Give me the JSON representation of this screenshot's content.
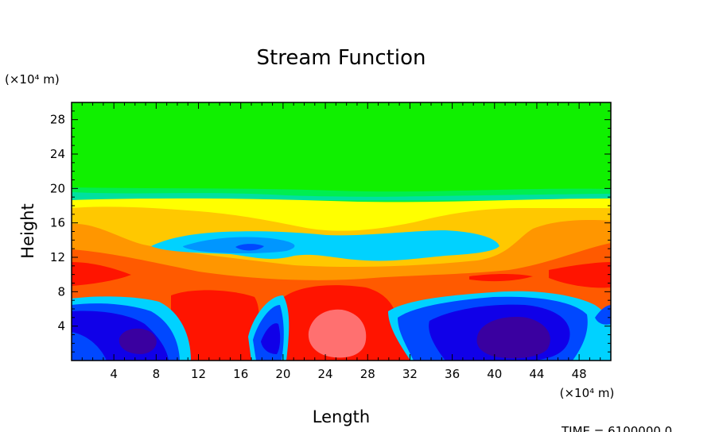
{
  "chart_data": {
    "type": "heatmap",
    "title": "Stream Function",
    "xlabel": "Length",
    "ylabel": "Height",
    "x_unit": "(×10⁴ m)",
    "y_unit": "(×10⁴ m)",
    "xlim": [
      0,
      51
    ],
    "ylim": [
      0,
      30
    ],
    "x_ticks": [
      "4",
      "8",
      "12",
      "16",
      "20",
      "24",
      "28",
      "32",
      "36",
      "40",
      "44",
      "48"
    ],
    "y_ticks": [
      "4",
      "8",
      "12",
      "16",
      "20",
      "24",
      "28"
    ],
    "footer": "TIME = 6100000.0",
    "colors": {
      "palette": [
        "#3a00a0",
        "#1000e8",
        "#0048ff",
        "#0096ff",
        "#00d2ff",
        "#00e0a0",
        "#00ee50",
        "#10f000",
        "#ffff00",
        "#ffc800",
        "#ff9600",
        "#ff5a00",
        "#ff1400",
        "#ff7070"
      ]
    },
    "contours": [
      {
        "level": 7,
        "x": [
          0,
          51
        ],
        "y": [
          0,
          30
        ]
      },
      {
        "level": 6,
        "x": [
          0,
          51
        ],
        "y": [
          19.5,
          30
        ]
      },
      {
        "level": 5,
        "x": [
          0,
          51
        ],
        "y": [
          18.8,
          19.6
        ]
      },
      {
        "level": 8,
        "x": [
          0,
          51
        ],
        "y": [
          16,
          19.5
        ]
      },
      {
        "level": 9,
        "x": [
          0,
          51
        ],
        "y": [
          9.5,
          17
        ]
      },
      {
        "level": 10,
        "x": [
          0,
          51
        ],
        "y": [
          0,
          13
        ]
      },
      {
        "level": 11,
        "x": [
          0,
          51
        ],
        "y": [
          0,
          11
        ]
      },
      {
        "level": 12,
        "x": [
          21,
          30
        ],
        "y": [
          0,
          8.5
        ]
      },
      {
        "level": 13,
        "x": [
          22,
          27
        ],
        "y": [
          0.5,
          6
        ]
      },
      {
        "level": 4,
        "x": [
          8,
          41
        ],
        "y": [
          11.5,
          16
        ]
      },
      {
        "level": 3,
        "x": [
          0,
          51
        ],
        "y": [
          0,
          8
        ]
      },
      {
        "level": 1,
        "x": [
          0,
          50
        ],
        "y": [
          0,
          7
        ]
      },
      {
        "level": 0,
        "x": [
          4,
          47
        ],
        "y": [
          0,
          5.5
        ]
      }
    ]
  }
}
